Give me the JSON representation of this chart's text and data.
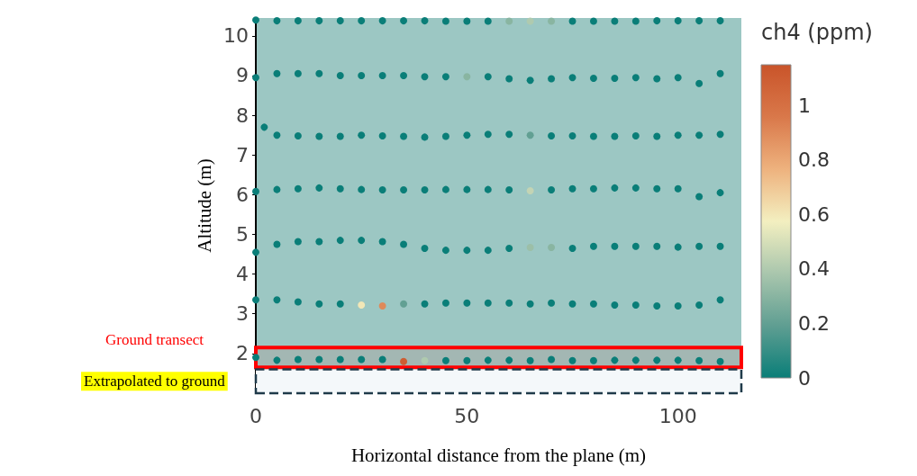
{
  "chart_data": {
    "type": "scatter",
    "xlabel": "Horizontal distance from the plane (m)",
    "ylabel": "Altitude (m)",
    "clabel": "ch4 (ppm)",
    "xlim": [
      0,
      115
    ],
    "ylim": [
      1.0,
      10.45
    ],
    "xticks": [
      0,
      50,
      100
    ],
    "yticks": [
      2,
      3,
      4,
      5,
      6,
      7,
      8,
      9,
      10
    ],
    "clim": [
      0,
      1.15
    ],
    "cticks": [
      0,
      0.2,
      0.4,
      0.6,
      0.8,
      1
    ],
    "grid": false,
    "marker": "circle",
    "series": [
      {
        "x": [
          0,
          5,
          10,
          15,
          20,
          25,
          30,
          35,
          40,
          45,
          50,
          55,
          60,
          65,
          70,
          75,
          80,
          85,
          90,
          95,
          100,
          105,
          110,
          0,
          5,
          10,
          15,
          20,
          25,
          30,
          35,
          40,
          45,
          50,
          55,
          60,
          65,
          70,
          75,
          80,
          85,
          90,
          95,
          100,
          105,
          110,
          2,
          5,
          10,
          15,
          20,
          25,
          30,
          35,
          40,
          45,
          50,
          55,
          60,
          65,
          70,
          75,
          80,
          85,
          90,
          95,
          100,
          105,
          110,
          0,
          5,
          10,
          15,
          20,
          25,
          30,
          35,
          40,
          45,
          50,
          55,
          60,
          65,
          70,
          75,
          80,
          85,
          90,
          95,
          100,
          105,
          110,
          0,
          5,
          10,
          15,
          20,
          25,
          30,
          35,
          40,
          45,
          50,
          55,
          60,
          65,
          70,
          75,
          80,
          85,
          90,
          95,
          100,
          105,
          110,
          0,
          5,
          10,
          15,
          20,
          25,
          30,
          35,
          40,
          45,
          50,
          55,
          60,
          65,
          70,
          75,
          80,
          85,
          90,
          95,
          100,
          105,
          110,
          0,
          5,
          10,
          15,
          20,
          25,
          30,
          35,
          40,
          45,
          50,
          55,
          60,
          65,
          70,
          75,
          80,
          85,
          90,
          95,
          100,
          105,
          110
        ],
        "values": [
          10.4,
          10.38,
          10.38,
          10.38,
          10.38,
          10.38,
          10.38,
          10.38,
          10.38,
          10.37,
          10.37,
          10.37,
          10.37,
          10.37,
          10.37,
          10.37,
          10.37,
          10.37,
          10.37,
          10.38,
          10.38,
          10.38,
          10.38,
          8.95,
          9.05,
          9.05,
          9.05,
          9.0,
          9.0,
          9.0,
          9.0,
          8.97,
          8.97,
          8.97,
          8.97,
          8.92,
          8.88,
          8.92,
          8.95,
          8.93,
          8.93,
          8.95,
          8.92,
          8.95,
          8.8,
          9.05,
          7.7,
          7.5,
          7.48,
          7.47,
          7.47,
          7.5,
          7.48,
          7.47,
          7.45,
          7.47,
          7.5,
          7.52,
          7.52,
          7.5,
          7.48,
          7.48,
          7.47,
          7.47,
          7.48,
          7.47,
          7.5,
          7.5,
          7.52,
          6.08,
          6.13,
          6.15,
          6.17,
          6.15,
          6.13,
          6.12,
          6.12,
          6.12,
          6.13,
          6.13,
          6.13,
          6.12,
          6.1,
          6.12,
          6.15,
          6.15,
          6.17,
          6.17,
          6.15,
          6.15,
          5.95,
          6.05,
          4.55,
          4.75,
          4.82,
          4.82,
          4.85,
          4.85,
          4.82,
          4.75,
          4.65,
          4.6,
          4.6,
          4.6,
          4.65,
          4.67,
          4.67,
          4.65,
          4.7,
          4.7,
          4.7,
          4.7,
          4.68,
          4.7,
          4.7,
          3.35,
          3.35,
          3.3,
          3.25,
          3.25,
          3.22,
          3.2,
          3.25,
          3.25,
          3.27,
          3.27,
          3.27,
          3.27,
          3.25,
          3.27,
          3.25,
          3.25,
          3.22,
          3.22,
          3.2,
          3.2,
          3.22,
          3.35,
          1.9,
          1.83,
          1.85,
          1.85,
          1.85,
          1.85,
          1.85,
          1.8,
          1.82,
          1.82,
          1.82,
          1.83,
          1.83,
          1.82,
          1.85,
          1.82,
          1.82,
          1.83,
          1.83,
          1.83,
          1.83,
          1.82,
          1.8
        ],
        "cvalues": [
          0,
          0,
          0,
          0,
          0,
          0,
          0,
          0,
          0,
          0,
          0,
          0,
          0.3,
          0.4,
          0.3,
          0,
          0,
          0,
          0,
          0,
          0,
          0,
          0,
          0,
          0,
          0,
          0,
          0,
          0,
          0,
          0,
          0,
          0,
          0.3,
          0,
          0,
          0,
          0,
          0,
          0,
          0,
          0,
          0,
          0,
          0,
          0,
          0,
          0,
          0,
          0,
          0,
          0,
          0,
          0,
          0,
          0,
          0,
          0,
          0,
          0.2,
          0,
          0,
          0,
          0,
          0,
          0,
          0,
          0,
          0,
          0,
          0,
          0,
          0,
          0,
          0,
          0,
          0,
          0,
          0,
          0,
          0,
          0,
          0.45,
          0,
          0,
          0,
          0,
          0,
          0,
          0,
          0,
          0,
          0,
          0,
          0,
          0,
          0,
          0,
          0,
          0,
          0,
          0,
          0,
          0,
          0,
          0.35,
          0.3,
          0,
          0,
          0,
          0,
          0,
          0,
          0,
          0,
          0,
          0,
          0,
          0,
          0,
          0.6,
          0.9,
          0.2,
          0,
          0,
          0,
          0,
          0,
          0,
          0,
          0,
          0,
          0,
          0,
          0,
          0,
          0,
          0,
          0,
          0,
          0,
          0,
          0,
          0,
          0,
          1.1,
          0.4,
          0,
          0,
          0,
          0,
          0,
          0,
          0,
          0,
          0,
          0,
          0,
          0,
          0,
          0
        ]
      }
    ],
    "bands": [
      {
        "axis": "y",
        "from": 1.65,
        "to": 2.15,
        "label": "Ground transect",
        "color": "#ff0000"
      },
      {
        "axis": "y",
        "from": 1.0,
        "to": 1.6,
        "label": "Extrapolated to ground",
        "color": "#1f3a4a"
      }
    ]
  }
}
